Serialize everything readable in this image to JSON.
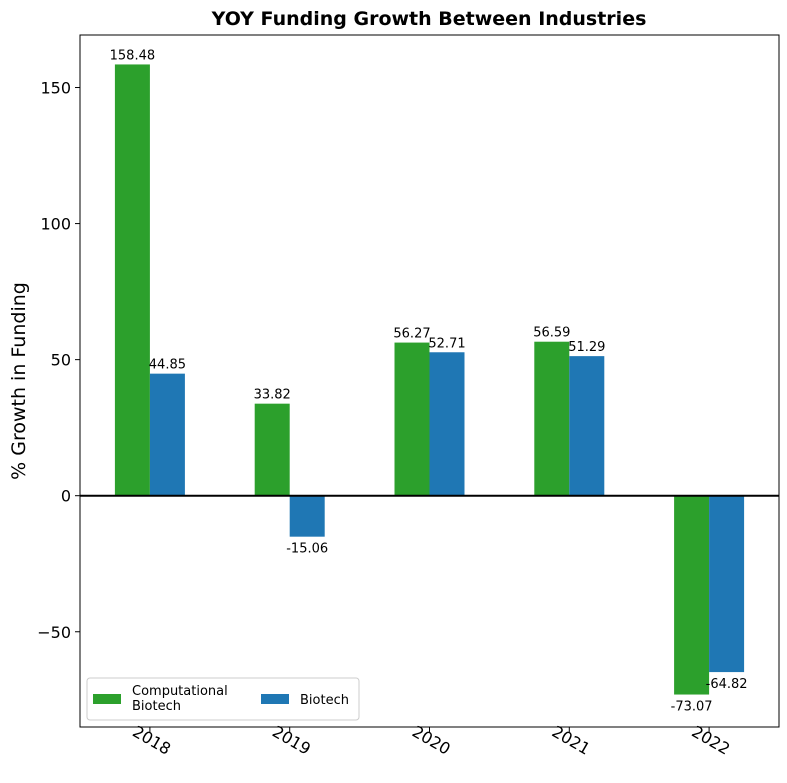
{
  "chart_data": {
    "type": "bar",
    "title": "YOY Funding Growth Between Industries",
    "xlabel": "",
    "ylabel": "% Growth in Funding",
    "categories": [
      "2018",
      "2019",
      "2020",
      "2021",
      "2022"
    ],
    "series": [
      {
        "name": "Computational\nBiotech",
        "legend_lines": [
          "Computational",
          "Biotech"
        ],
        "color": "#2ca02c",
        "values": [
          158.48,
          33.82,
          56.27,
          56.59,
          -73.07
        ],
        "labels": [
          "158.48",
          "33.82",
          "56.27",
          "56.59",
          "-73.07"
        ]
      },
      {
        "name": "Biotech",
        "legend_lines": [
          "Biotech"
        ],
        "color": "#1f77b4",
        "values": [
          44.85,
          -15.06,
          52.71,
          51.29,
          -64.82
        ],
        "labels": [
          "44.85",
          "-15.06",
          "52.71",
          "51.29",
          "-64.82"
        ]
      }
    ],
    "ylim": [
      -85,
      169.3
    ],
    "yticks": [
      -50,
      0,
      50,
      100,
      150
    ],
    "ytick_labels": [
      "−50",
      "0",
      "50",
      "100",
      "150"
    ],
    "zero_line": true,
    "grid": false,
    "legend_position": "lower-left",
    "legend_columns": 2
  }
}
